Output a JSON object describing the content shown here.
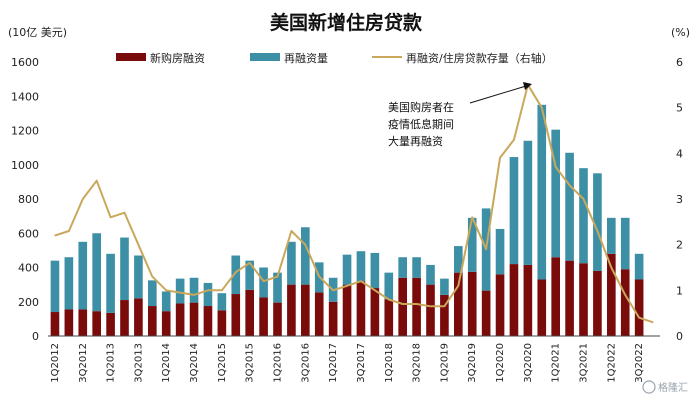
{
  "chart_data": {
    "type": "bar",
    "title": "美国新增住房贷款",
    "left_unit": "(10亿 美元)",
    "right_unit": "(%)",
    "categories": [
      "1Q2012",
      "2Q2012",
      "3Q2012",
      "4Q2012",
      "1Q2013",
      "2Q2013",
      "3Q2013",
      "4Q2013",
      "1Q2014",
      "2Q2014",
      "3Q2014",
      "4Q2014",
      "1Q2015",
      "2Q2015",
      "3Q2015",
      "4Q2015",
      "1Q2016",
      "2Q2016",
      "3Q2016",
      "4Q2016",
      "1Q2017",
      "2Q2017",
      "3Q2017",
      "4Q2017",
      "1Q2018",
      "2Q2018",
      "3Q2018",
      "4Q2018",
      "1Q2019",
      "2Q2019",
      "3Q2019",
      "4Q2019",
      "1Q2020",
      "2Q2020",
      "3Q2020",
      "4Q2020",
      "1Q2021",
      "2Q2021",
      "3Q2021",
      "4Q2021",
      "1Q2022",
      "2Q2022",
      "3Q2022",
      "4Q2022"
    ],
    "x_tick_labels": [
      "1Q2012",
      "3Q2012",
      "1Q2013",
      "3Q2013",
      "1Q2014",
      "3Q2014",
      "1Q2015",
      "3Q2015",
      "1Q2016",
      "3Q2016",
      "1Q2017",
      "3Q2017",
      "1Q2018",
      "3Q2018",
      "1Q2019",
      "3Q2019",
      "1Q2020",
      "3Q2020",
      "1Q2021",
      "3Q2021",
      "1Q2022",
      "3Q2022"
    ],
    "y_left": {
      "lim": [
        0,
        1600
      ],
      "ticks": [
        "0",
        "200",
        "400",
        "600",
        "800",
        "1000",
        "1200",
        "1400",
        "1600"
      ]
    },
    "y_right": {
      "lim": [
        0,
        6
      ],
      "ticks": [
        "0",
        "1",
        "2",
        "3",
        "4",
        "5",
        "6"
      ]
    },
    "stacked": true,
    "series": [
      {
        "name": "新购房融资",
        "axis": "left",
        "kind": "bar",
        "color": "#7a0b0b",
        "values": [
          140,
          155,
          155,
          145,
          135,
          210,
          220,
          175,
          145,
          190,
          195,
          175,
          150,
          245,
          270,
          225,
          195,
          300,
          300,
          255,
          200,
          300,
          320,
          280,
          215,
          340,
          340,
          300,
          240,
          370,
          375,
          265,
          360,
          420,
          415,
          330,
          460,
          440,
          425,
          380,
          480,
          390,
          330,
          0
        ]
      },
      {
        "name": "再融资量",
        "axis": "left",
        "kind": "bar",
        "color": "#3d8fa6",
        "values": [
          300,
          305,
          395,
          455,
          345,
          365,
          250,
          150,
          115,
          145,
          145,
          135,
          100,
          225,
          170,
          175,
          175,
          250,
          335,
          175,
          140,
          175,
          175,
          205,
          155,
          120,
          120,
          115,
          95,
          155,
          315,
          480,
          265,
          625,
          725,
          1020,
          745,
          630,
          555,
          570,
          210,
          300,
          150,
          0
        ]
      },
      {
        "name": "再融资/住房贷款存量（右轴）",
        "axis": "right",
        "kind": "line",
        "color": "#c9a85c",
        "values": [
          2.2,
          2.3,
          3.0,
          3.4,
          2.6,
          2.7,
          2.0,
          1.3,
          1.0,
          0.95,
          0.9,
          1.0,
          1.0,
          1.4,
          1.6,
          1.2,
          1.3,
          2.3,
          2.0,
          1.3,
          1.0,
          1.1,
          1.2,
          1.0,
          0.8,
          0.7,
          0.7,
          0.65,
          0.65,
          1.1,
          2.6,
          1.9,
          3.9,
          4.3,
          5.5,
          5.0,
          3.7,
          3.3,
          3.0,
          2.3,
          1.5,
          0.9,
          0.4,
          0.3
        ]
      }
    ],
    "legend_position": "top",
    "grid": false,
    "annotation": [
      "美国购房者在",
      "疫情低息期间",
      "大量再融资"
    ]
  },
  "watermark": "格隆汇"
}
